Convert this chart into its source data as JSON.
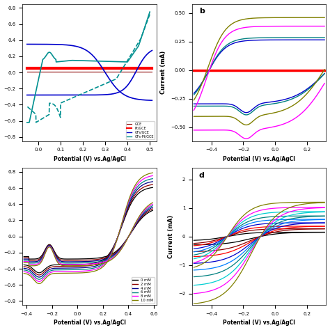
{
  "panel_a": {
    "xlabel": "Potential (V) vs.Ag/AgCl",
    "ylabel": "",
    "xlim": [
      -0.07,
      0.53
    ],
    "ylim": [
      -0.85,
      0.85
    ],
    "xticks": [
      0.0,
      0.1,
      0.2,
      0.3,
      0.4,
      0.5
    ],
    "legend": [
      "GCE",
      "Pt/GCE",
      "GFs/GCE",
      "GFs-Pt/GCE"
    ],
    "colors": [
      "#8B0000",
      "#FF0000",
      "#0000CC",
      "#009090"
    ]
  },
  "panel_b": {
    "title": "b",
    "xlabel": "Potential (V) vs.Ag/AgCl",
    "ylabel": "Current (mA)",
    "xlim": [
      -0.52,
      0.32
    ],
    "ylim": [
      -0.62,
      0.58
    ],
    "xticks": [
      -0.4,
      -0.2,
      0.0,
      0.2
    ],
    "yticks": [
      -0.5,
      -0.25,
      0.0,
      0.25,
      0.5
    ],
    "colors": [
      "#FF0000",
      "#0000CC",
      "#008080",
      "#FF00FF",
      "#808000"
    ]
  },
  "panel_c": {
    "xlabel": "Potential (V) vs.Ag/AgCl",
    "ylabel": "",
    "xlim": [
      -0.43,
      0.62
    ],
    "ylim": [
      -0.85,
      0.85
    ],
    "xticks": [
      -0.4,
      -0.2,
      0.0,
      0.2,
      0.4,
      0.6
    ],
    "legend": [
      "0 mM",
      "2 mM",
      "4 mM",
      "6 mM",
      "8 mM",
      "10 mM"
    ],
    "colors": [
      "#000000",
      "#8B0000",
      "#00008B",
      "#008080",
      "#FF00FF",
      "#808000"
    ]
  },
  "panel_d": {
    "title": "d",
    "xlabel": "Potential (V) vs.Ag/AgCl",
    "ylabel": "Current (mA)",
    "xlim": [
      -0.52,
      0.32
    ],
    "ylim": [
      -2.4,
      2.4
    ],
    "xticks": [
      -0.4,
      -0.2,
      0.0,
      0.2
    ],
    "yticks": [
      -2,
      -1,
      0,
      1,
      2
    ],
    "colors": [
      "#000000",
      "#8B0000",
      "#FF0000",
      "#0000CC",
      "#0080FF",
      "#008080",
      "#00CED1",
      "#FF00FF",
      "#808000"
    ]
  }
}
